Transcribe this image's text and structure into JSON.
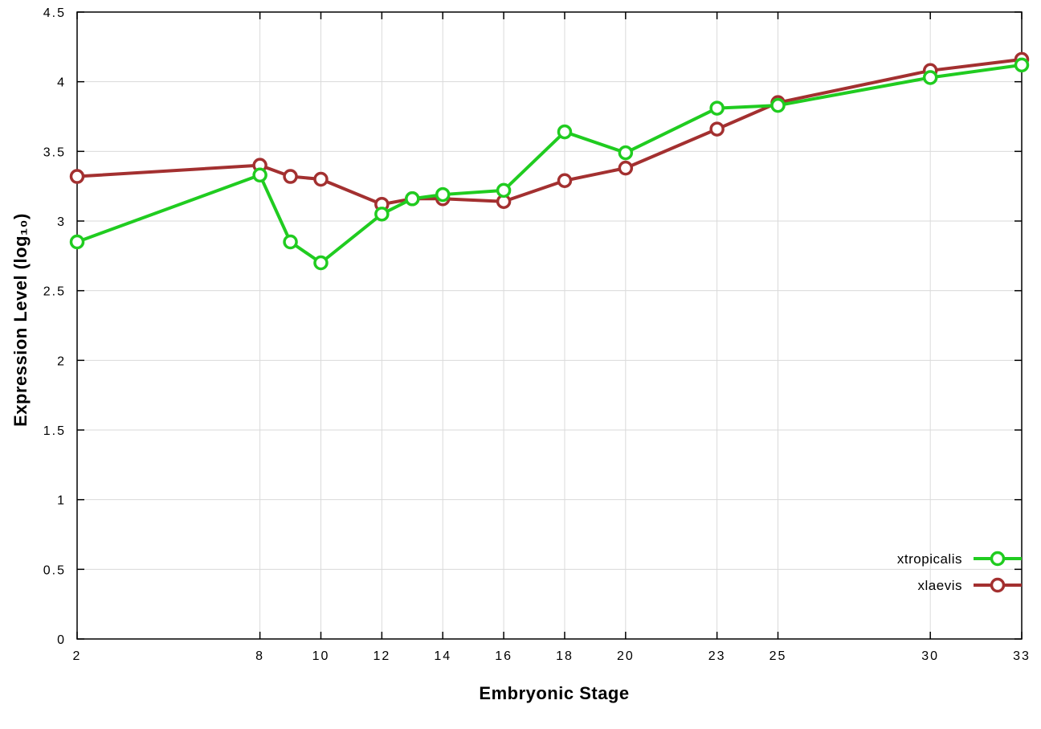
{
  "chart_data": {
    "type": "line",
    "title": "",
    "xlabel": "Embryonic Stage",
    "ylabel": "Expression Level (log₁₀)",
    "x": [
      2,
      8,
      9,
      10,
      12,
      13,
      14,
      16,
      18,
      20,
      23,
      25,
      30,
      33
    ],
    "series": [
      {
        "name": "xtropicalis",
        "color": "#20cc20",
        "values": [
          2.85,
          3.33,
          2.85,
          2.7,
          3.05,
          3.16,
          3.19,
          3.22,
          3.64,
          3.49,
          3.81,
          3.83,
          4.03,
          4.12
        ]
      },
      {
        "name": "xlaevis",
        "color": "#a33030",
        "values": [
          3.32,
          3.4,
          3.32,
          3.3,
          3.12,
          3.16,
          3.16,
          3.14,
          3.29,
          3.38,
          3.66,
          3.85,
          4.08,
          4.16
        ]
      }
    ],
    "x_ticks": [
      2,
      8,
      10,
      12,
      14,
      16,
      18,
      20,
      23,
      25,
      30,
      33
    ],
    "y_ticks": [
      0,
      0.5,
      1,
      1.5,
      2,
      2.5,
      3,
      3.5,
      4,
      4.5
    ],
    "x_range": [
      2,
      33
    ],
    "y_range": [
      0,
      4.5
    ],
    "grid": true,
    "legend": {
      "position": "bottom-right",
      "entries": [
        "xtropicalis",
        "xlaevis"
      ]
    },
    "colors": {
      "xtropicalis": "#20cc20",
      "xlaevis": "#a33030",
      "grid": "#dadada",
      "axis": "#000000",
      "background": "#ffffff"
    }
  }
}
